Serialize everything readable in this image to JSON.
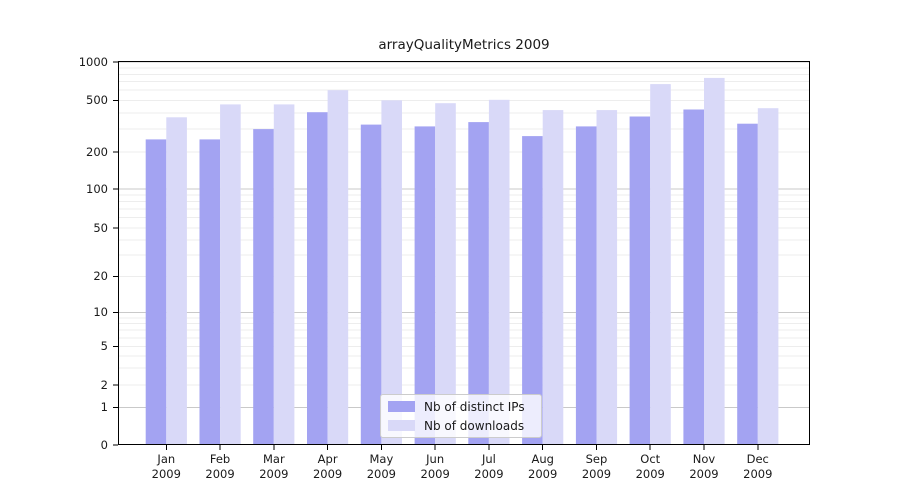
{
  "figure": {
    "background": "#ffffff"
  },
  "chart_data": {
    "type": "bar",
    "title": "arrayQualityMetrics 2009",
    "categories": [
      [
        "Jan",
        "2009"
      ],
      [
        "Feb",
        "2009"
      ],
      [
        "Mar",
        "2009"
      ],
      [
        "Apr",
        "2009"
      ],
      [
        "May",
        "2009"
      ],
      [
        "Jun",
        "2009"
      ],
      [
        "Jul",
        "2009"
      ],
      [
        "Aug",
        "2009"
      ],
      [
        "Sep",
        "2009"
      ],
      [
        "Oct",
        "2009"
      ],
      [
        "Nov",
        "2009"
      ],
      [
        "Dec",
        "2009"
      ]
    ],
    "series": [
      {
        "name": "Nb of distinct IPs",
        "color": "#a3a3f2",
        "values": [
          250,
          250,
          300,
          405,
          325,
          315,
          340,
          265,
          315,
          375,
          425,
          330
        ]
      },
      {
        "name": "Nb of downloads",
        "color": "#d9d9f8",
        "values": [
          370,
          465,
          465,
          600,
          500,
          475,
          505,
          420,
          420,
          670,
          750,
          435
        ]
      }
    ],
    "xlabel": "",
    "ylabel": "",
    "yticks": [
      0,
      1,
      2,
      5,
      10,
      20,
      50,
      100,
      200,
      500,
      1000
    ],
    "ylim": [
      0,
      1000
    ],
    "yscale": "custom log-like (logarithmic above 1, compressed linear 0-1)",
    "grid": "horizontal, light minor lines at 2-9 per decade, darker lines at decades",
    "legend_position": "inside plot, bottom center",
    "colors": {
      "axis": "#000000",
      "major_grid": "#c9c9c9",
      "minor_grid": "#ededed",
      "text": "#1a1a1a",
      "legend_border": "#cccccc"
    }
  }
}
